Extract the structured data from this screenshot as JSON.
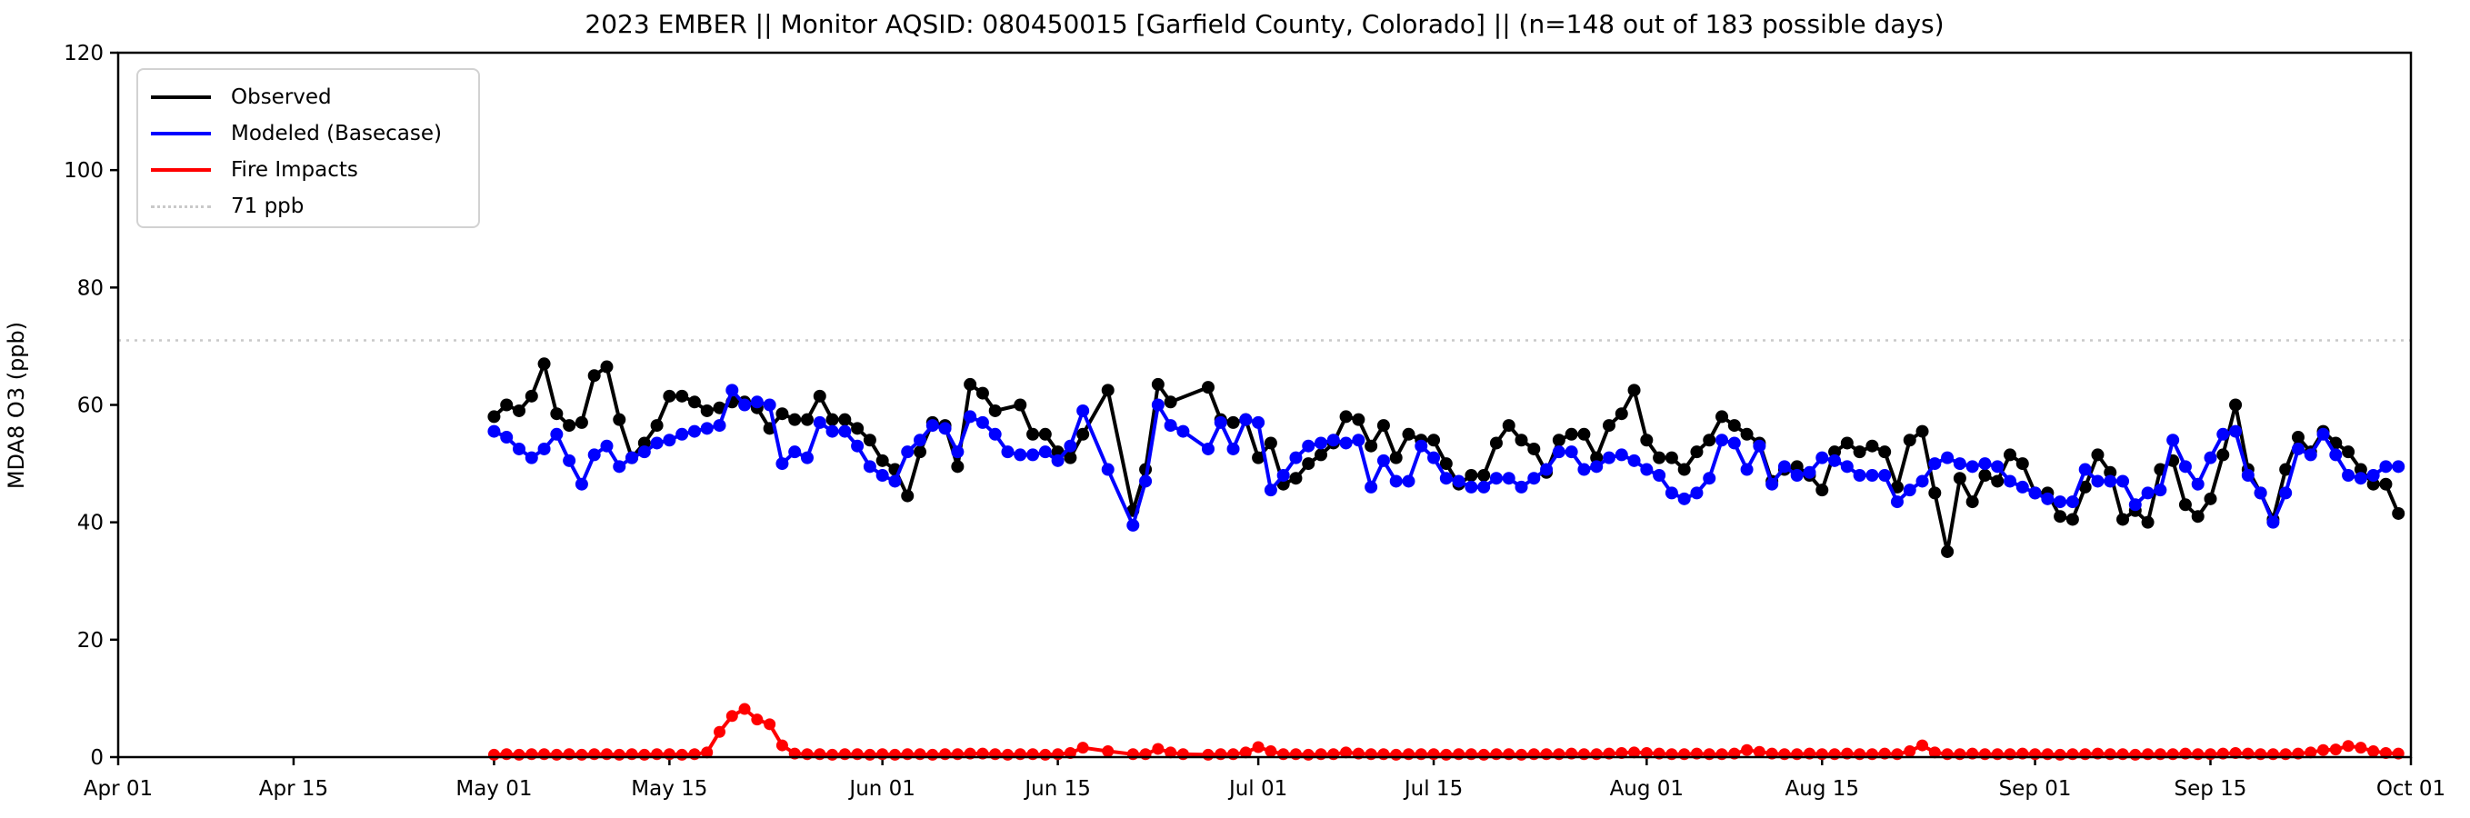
{
  "chart_data": {
    "type": "line",
    "title": "2023 EMBER || Monitor AQSID: 080450015 [Garfield County, Colorado] || (n=148 out of 183 possible days)",
    "ylabel": "MDA8 O3 (ppb)",
    "ylim": [
      0,
      120
    ],
    "yticks": [
      0,
      20,
      40,
      60,
      80,
      100,
      120
    ],
    "xlim_days": [
      0,
      183
    ],
    "x_ticks": [
      {
        "day": 0,
        "label": "Apr 01"
      },
      {
        "day": 14,
        "label": "Apr 15"
      },
      {
        "day": 30,
        "label": "May 01"
      },
      {
        "day": 44,
        "label": "May 15"
      },
      {
        "day": 61,
        "label": "Jun 01"
      },
      {
        "day": 75,
        "label": "Jun 15"
      },
      {
        "day": 91,
        "label": "Jul 01"
      },
      {
        "day": 105,
        "label": "Jul 15"
      },
      {
        "day": 122,
        "label": "Aug 01"
      },
      {
        "day": 136,
        "label": "Aug 15"
      },
      {
        "day": 153,
        "label": "Sep 01"
      },
      {
        "day": 167,
        "label": "Sep 15"
      },
      {
        "day": 183,
        "label": "Oct 01"
      }
    ],
    "threshold": {
      "value": 71,
      "label": "71 ppb",
      "color": "#c9c9c9",
      "style": "dotted"
    },
    "legend_position": "upper-left",
    "grid": false,
    "data_start_day": 30,
    "dates": [
      "May 01",
      "May 02",
      "May 03",
      "May 04",
      "May 05",
      "May 06",
      "May 07",
      "May 08",
      "May 09",
      "May 10",
      "May 11",
      "May 12",
      "May 13",
      "May 14",
      "May 15",
      "May 16",
      "May 17",
      "May 18",
      "May 19",
      "May 20",
      "May 21",
      "May 22",
      "May 23",
      "May 24",
      "May 25",
      "May 26",
      "May 27",
      "May 28",
      "May 29",
      "May 30",
      "May 31",
      "Jun 01",
      "Jun 02",
      "Jun 03",
      "Jun 04",
      "Jun 05",
      "Jun 06",
      "Jun 07",
      "Jun 08",
      "Jun 09",
      "Jun 10",
      "Jun 11",
      "Jun 12",
      "Jun 13",
      "Jun 14",
      "Jun 15",
      "Jun 16",
      "Jun 17",
      "Jun 18",
      "Jun 19",
      "Jun 20",
      "Jun 21",
      "Jun 22",
      "Jun 23",
      "Jun 24",
      "Jun 25",
      "Jun 26",
      "Jun 27",
      "Jun 28",
      "Jun 29",
      "Jun 30",
      "Jul 01",
      "Jul 02",
      "Jul 03",
      "Jul 04",
      "Jul 05",
      "Jul 06",
      "Jul 07",
      "Jul 08",
      "Jul 09",
      "Jul 10",
      "Jul 11",
      "Jul 12",
      "Jul 13",
      "Jul 14",
      "Jul 15",
      "Jul 16",
      "Jul 17",
      "Jul 18",
      "Jul 19",
      "Jul 20",
      "Jul 21",
      "Jul 22",
      "Jul 23",
      "Jul 24",
      "Jul 25",
      "Jul 26",
      "Jul 27",
      "Jul 28",
      "Jul 29",
      "Jul 30",
      "Jul 31",
      "Aug 01",
      "Aug 02",
      "Aug 03",
      "Aug 04",
      "Aug 05",
      "Aug 06",
      "Aug 07",
      "Aug 08",
      "Aug 09",
      "Aug 10",
      "Aug 11",
      "Aug 12",
      "Aug 13",
      "Aug 14",
      "Aug 15",
      "Aug 16",
      "Aug 17",
      "Aug 18",
      "Aug 19",
      "Aug 20",
      "Aug 21",
      "Aug 22",
      "Aug 23",
      "Aug 24",
      "Aug 25",
      "Aug 26",
      "Aug 27",
      "Aug 28",
      "Aug 29",
      "Aug 30",
      "Aug 31",
      "Sep 01",
      "Sep 02",
      "Sep 03",
      "Sep 04",
      "Sep 05",
      "Sep 06",
      "Sep 07",
      "Sep 08",
      "Sep 09",
      "Sep 10",
      "Sep 11",
      "Sep 12",
      "Sep 13",
      "Sep 14",
      "Sep 15",
      "Sep 16",
      "Sep 17",
      "Sep 18",
      "Sep 19",
      "Sep 20",
      "Sep 21",
      "Sep 22",
      "Sep 23",
      "Sep 24",
      "Sep 25",
      "Sep 26",
      "Sep 27",
      "Sep 28",
      "Sep 29",
      "Sep 30"
    ],
    "series": [
      {
        "name": "Observed",
        "color": "#000000",
        "values": [
          58,
          60,
          59,
          61.5,
          67,
          58.5,
          56.5,
          57,
          65,
          66.5,
          57.5,
          51,
          53.5,
          56.5,
          61.5,
          61.5,
          60.5,
          59,
          59.5,
          60.5,
          60.5,
          59.5,
          56,
          58.5,
          57.5,
          57.5,
          61.5,
          57.5,
          57.5,
          56,
          54,
          50.5,
          49,
          44.5,
          52,
          57,
          56.5,
          49.5,
          63.5,
          62,
          59,
          null,
          60,
          55,
          55,
          52,
          51,
          55,
          null,
          62.5,
          null,
          42,
          49,
          63.5,
          60.5,
          null,
          null,
          63,
          57.5,
          57,
          57.5,
          51,
          53.5,
          46.5,
          47.5,
          50,
          51.5,
          53.5,
          58,
          57.5,
          53,
          56.5,
          51,
          55,
          54,
          54,
          50,
          46.5,
          48,
          48,
          53.5,
          56.5,
          54,
          52.5,
          48.5,
          54,
          55,
          55,
          51,
          56.5,
          58.5,
          62.5,
          54,
          51,
          51,
          49,
          52,
          54,
          58,
          56.5,
          55,
          53.5,
          47,
          49,
          49.5,
          48,
          45.5,
          52,
          53.5,
          52,
          53,
          52,
          46,
          54,
          55.5,
          45,
          35,
          47.5,
          43.5,
          48,
          47,
          51.5,
          50,
          45,
          45,
          41,
          40.5,
          46,
          51.5,
          48.5,
          40.5,
          42,
          40,
          49,
          50.5,
          43,
          41,
          44,
          51.5,
          60,
          49,
          45,
          40.5,
          49,
          54.5,
          52,
          55.5,
          53.5,
          52,
          49,
          46.5,
          46.5,
          41.5
        ]
      },
      {
        "name": "Modeled (Basecase)",
        "color": "#0000ff",
        "values": [
          55.5,
          54.5,
          52.5,
          51,
          52.5,
          55,
          50.5,
          46.5,
          51.5,
          53,
          49.5,
          51,
          52,
          53.5,
          54,
          55,
          55.5,
          56,
          56.5,
          62.5,
          60,
          60.5,
          60,
          50,
          52,
          51,
          57,
          55.5,
          55.5,
          53,
          49.5,
          48,
          47,
          52,
          54,
          56.5,
          56,
          52,
          58,
          57,
          55,
          52,
          51.5,
          51.5,
          52,
          50.5,
          53,
          59,
          null,
          49,
          null,
          39.5,
          47,
          60,
          56.5,
          55.5,
          null,
          52.5,
          57,
          52.5,
          57.5,
          57,
          45.5,
          48,
          51,
          53,
          53.5,
          54,
          53.5,
          54,
          46,
          50.5,
          47,
          47,
          53,
          51,
          47.5,
          47,
          46,
          46,
          47.5,
          47.5,
          46,
          47.5,
          49,
          52,
          52,
          49,
          49.5,
          51,
          51.5,
          50.5,
          49,
          48,
          45,
          44,
          45,
          47.5,
          54,
          53.5,
          49,
          53,
          46.5,
          49.5,
          48,
          48.5,
          51,
          50.5,
          49.5,
          48,
          48,
          48,
          43.5,
          45.5,
          47,
          50,
          51,
          50,
          49.5,
          50,
          49.5,
          47,
          46,
          45,
          44,
          43.5,
          43.5,
          49,
          47,
          47,
          47,
          43,
          45,
          45.5,
          54,
          49.5,
          46.5,
          51,
          55,
          55.5,
          48,
          45,
          40,
          45,
          52.5,
          51.5,
          55,
          51.5,
          48,
          47.5,
          48,
          49.5,
          49.5
        ]
      },
      {
        "name": "Fire Impacts",
        "color": "#ff0000",
        "values": [
          0.4,
          0.5,
          0.4,
          0.5,
          0.5,
          0.4,
          0.5,
          0.4,
          0.5,
          0.5,
          0.4,
          0.5,
          0.4,
          0.5,
          0.5,
          0.4,
          0.5,
          0.8,
          4.3,
          7,
          8.2,
          6.4,
          5.6,
          2,
          0.6,
          0.5,
          0.5,
          0.4,
          0.5,
          0.5,
          0.4,
          0.5,
          0.4,
          0.5,
          0.5,
          0.4,
          0.5,
          0.5,
          0.6,
          0.6,
          0.5,
          0.4,
          0.5,
          0.5,
          0.4,
          0.5,
          0.7,
          1.6,
          null,
          1,
          null,
          0.5,
          0.5,
          1.4,
          0.8,
          0.5,
          null,
          0.4,
          0.5,
          0.5,
          0.8,
          1.7,
          1,
          0.5,
          0.5,
          0.4,
          0.5,
          0.5,
          0.8,
          0.6,
          0.5,
          0.5,
          0.4,
          0.5,
          0.5,
          0.5,
          0.4,
          0.5,
          0.5,
          0.4,
          0.5,
          0.5,
          0.4,
          0.5,
          0.5,
          0.5,
          0.6,
          0.5,
          0.5,
          0.6,
          0.7,
          0.8,
          0.7,
          0.6,
          0.5,
          0.5,
          0.6,
          0.5,
          0.5,
          0.6,
          1.2,
          0.9,
          0.6,
          0.5,
          0.5,
          0.6,
          0.5,
          0.5,
          0.6,
          0.5,
          0.5,
          0.6,
          0.5,
          1,
          2,
          0.8,
          0.5,
          0.5,
          0.6,
          0.5,
          0.5,
          0.5,
          0.6,
          0.5,
          0.5,
          0.4,
          0.5,
          0.5,
          0.6,
          0.5,
          0.5,
          0.4,
          0.5,
          0.5,
          0.5,
          0.6,
          0.5,
          0.5,
          0.6,
          0.7,
          0.6,
          0.5,
          0.5,
          0.5,
          0.6,
          0.8,
          1.2,
          1.3,
          1.9,
          1.6,
          1,
          0.7,
          0.6
        ]
      }
    ],
    "legend": {
      "entries": [
        {
          "label": "Observed"
        },
        {
          "label": "Modeled (Basecase)"
        },
        {
          "label": "Fire Impacts"
        },
        {
          "label": "71 ppb"
        }
      ]
    }
  }
}
